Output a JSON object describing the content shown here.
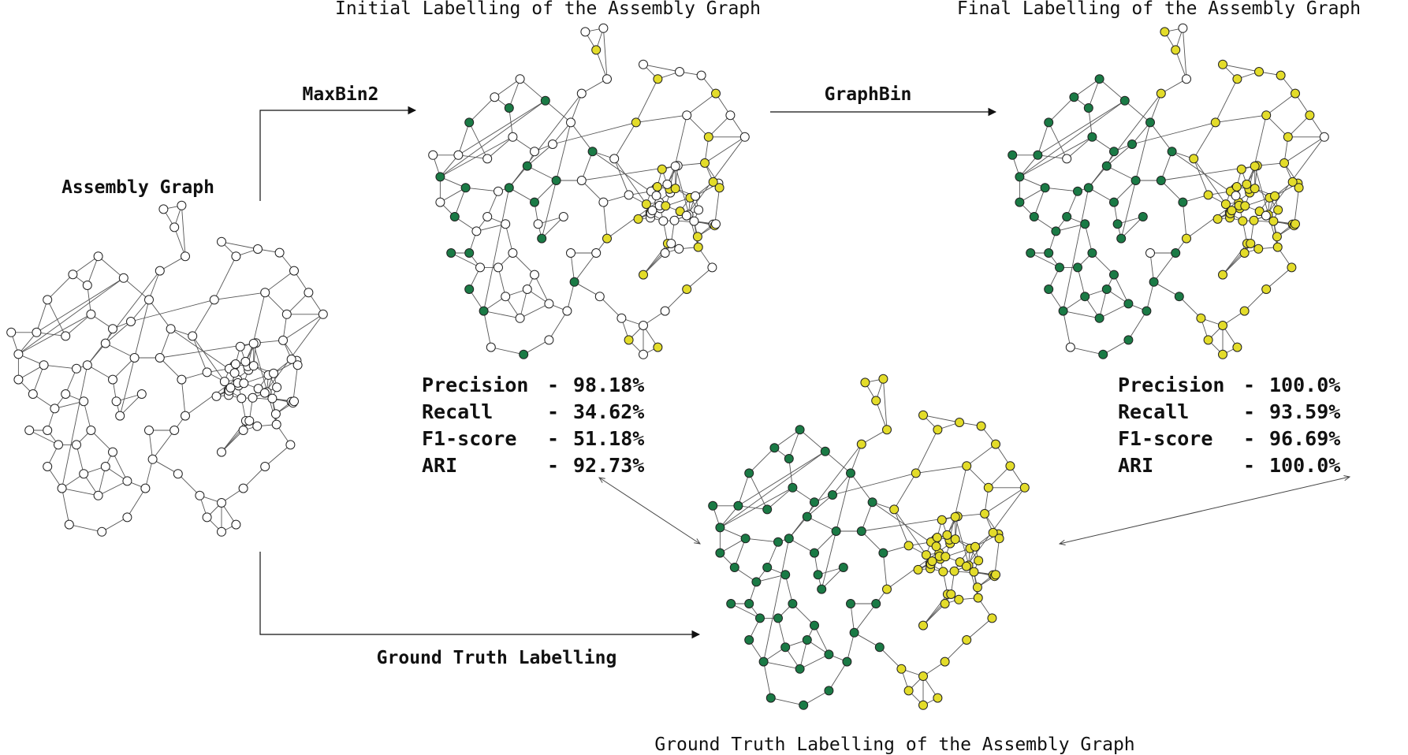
{
  "titles": {
    "initial": "Initial Labelling of the Assembly Graph",
    "final": "Final Labelling of the Assembly Graph",
    "ground": "Ground Truth Labelling of the Assembly Graph"
  },
  "labels": {
    "assembly_graph": "Assembly Graph",
    "maxbin2": "MaxBin2",
    "graphbin": "GraphBin",
    "ground_truth": "Ground Truth Labelling"
  },
  "metrics_initial": [
    {
      "name": "Precision",
      "value": "98.18%"
    },
    {
      "name": "Recall",
      "value": "34.62%"
    },
    {
      "name": "F1-score",
      "value": "51.18%"
    },
    {
      "name": "ARI",
      "value": "92.73%"
    }
  ],
  "metrics_final": [
    {
      "name": "Precision",
      "value": "100.0%"
    },
    {
      "name": "Recall",
      "value": "93.59%"
    },
    {
      "name": "F1-score",
      "value": "96.69%"
    },
    {
      "name": "ARI",
      "value": "100.0%"
    }
  ],
  "colors": {
    "unlabelled": "#ffffff",
    "bin_green": "#1a7a45",
    "bin_yellow": "#e3dc2a",
    "highlight_ring": "#e05050"
  },
  "graphs": {
    "assembly": "all-unlabelled",
    "initial": "partial-labelling",
    "final": "near-complete-labelling",
    "ground": "complete-labelling"
  }
}
